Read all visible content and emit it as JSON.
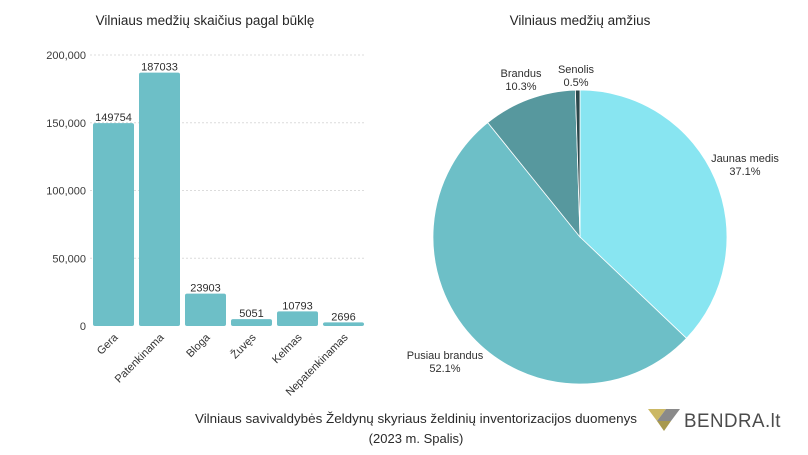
{
  "chart_data": [
    {
      "type": "bar",
      "title": "Vilniaus medžių skaičius pagal būklę",
      "xlabel": "",
      "ylabel": "",
      "categories": [
        "Gera",
        "Patenkinama",
        "Bloga",
        "Žuvęs",
        "Kelmas",
        "Nepatenkinamas"
      ],
      "values": [
        149754,
        187033,
        23903,
        5051,
        10793,
        2696
      ],
      "ylim": [
        0,
        200000
      ],
      "yticks": [
        0,
        50000,
        100000,
        150000,
        200000
      ],
      "grid": true,
      "data_labels": true,
      "color": "#6dbfc7"
    },
    {
      "type": "pie",
      "title": "Vilniaus medžių amžius",
      "unit": "%",
      "slices": [
        {
          "label": "Jaunas medis",
          "value": 37.1,
          "color": "#88e5f1"
        },
        {
          "label": "Pusiau brandus",
          "value": 52.1,
          "color": "#6dbfc7"
        },
        {
          "label": "Brandus",
          "value": 10.3,
          "color": "#57989e"
        },
        {
          "label": "Senolis",
          "value": 0.5,
          "color": "#2b474b"
        }
      ]
    }
  ],
  "footer": {
    "source_line": "Vilniaus savivaldybės Želdynų skyriaus želdinių inventorizacijos duomenys",
    "date_line": "(2023 m. Spalis)"
  },
  "logo": {
    "text": "BENDRA.lt",
    "icon": "folded-ribbon-logo-icon",
    "icon_colors": [
      "#cbb864",
      "#8a8a8a",
      "#a8994e"
    ]
  }
}
